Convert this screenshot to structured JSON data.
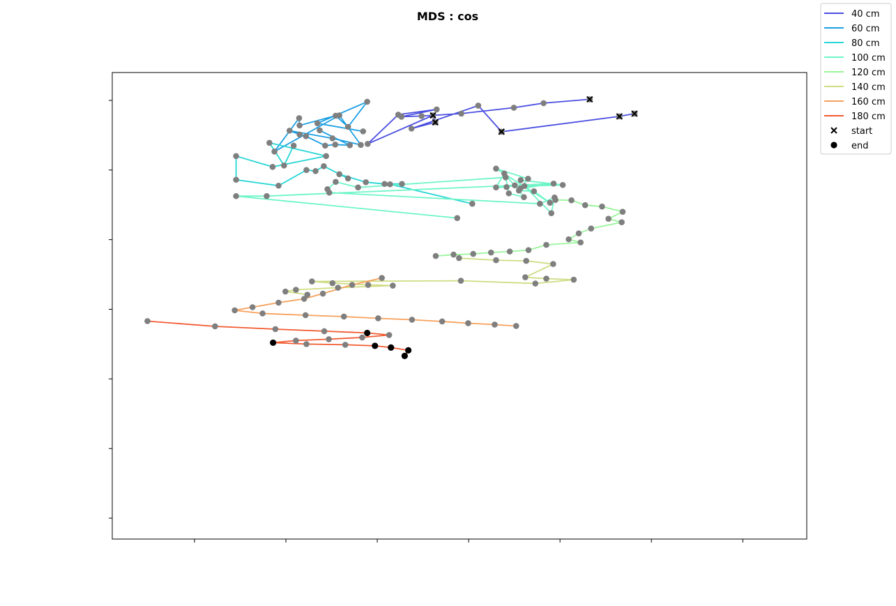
{
  "chart_data": {
    "type": "line",
    "title": "MDS : cos",
    "xlabel": "",
    "ylabel": "",
    "xlim": [
      -0.065,
      0.087
    ],
    "ylim": [
      -0.076,
      0.058
    ],
    "x_tick_values": [
      -0.047,
      -0.027,
      -0.007,
      0.013,
      0.033,
      0.053,
      0.073
    ],
    "y_tick_values": [
      -0.07,
      -0.05,
      -0.03,
      -0.01,
      0.01,
      0.03,
      0.05
    ],
    "tick_labels_visible": false,
    "grid": false,
    "legend_position": "upper-right outside",
    "series": [
      {
        "name": "40 cm",
        "color": "#4a4ee0",
        "points": [
          [
            0.0395,
            0.0503
          ],
          [
            0.0294,
            0.0492
          ],
          [
            0.0229,
            0.0479
          ],
          [
            0.0114,
            0.0462
          ],
          [
            0.0027,
            0.0455
          ],
          [
            -0.0017,
            0.0453
          ],
          [
            0.006,
            0.0474
          ],
          [
            -0.0024,
            0.0459
          ],
          [
            -0.0091,
            0.0375
          ],
          [
            0.0052,
            0.0457
          ],
          [
            0.0057,
            0.0437
          ],
          [
            0.0005,
            0.0419
          ],
          [
            0.0151,
            0.0485
          ],
          [
            0.0202,
            0.041
          ],
          [
            0.046,
            0.0454
          ],
          [
            0.0493,
            0.0462
          ]
        ]
      },
      {
        "name": "60 cm",
        "color": "#1a9fe4",
        "points": [
          [
            -0.0101,
            0.0411
          ],
          [
            -0.0201,
            0.0434
          ],
          [
            -0.0092,
            0.0496
          ],
          [
            -0.0134,
            0.0424
          ],
          [
            -0.0161,
            0.0456
          ],
          [
            -0.024,
            0.0428
          ],
          [
            -0.0241,
            0.0449
          ],
          [
            -0.0295,
            0.0353
          ],
          [
            -0.0153,
            0.0457
          ],
          [
            -0.0106,
            0.0372
          ],
          [
            -0.0168,
            0.0391
          ],
          [
            -0.0262,
            0.0413
          ],
          [
            -0.024,
            0.0402
          ],
          [
            -0.0226,
            0.0397
          ],
          [
            -0.0184,
            0.037
          ],
          [
            -0.0162,
            0.0373
          ],
          [
            -0.013,
            0.0371
          ],
          [
            -0.0196,
            0.0414
          ]
        ]
      },
      {
        "name": "80 cm",
        "color": "#26d6d6",
        "points": [
          [
            -0.0253,
            0.037
          ],
          [
            -0.0274,
            0.0313
          ],
          [
            -0.0306,
            0.0378
          ],
          [
            -0.0182,
            0.034
          ],
          [
            -0.0299,
            0.0309
          ],
          [
            -0.0379,
            0.034
          ],
          [
            -0.0379,
            0.0272
          ],
          [
            -0.0286,
            0.0255
          ],
          [
            -0.0225,
            0.03
          ],
          [
            -0.0205,
            0.0297
          ],
          [
            -0.0187,
            0.0311
          ],
          [
            -0.0134,
            0.0276
          ],
          [
            -0.0153,
            0.0288
          ],
          [
            -0.0095,
            0.0265
          ],
          [
            -0.0054,
            0.026
          ],
          [
            -0.0016,
            0.026
          ],
          [
            -0.0042,
            0.0259
          ],
          [
            0.0138,
            0.0203
          ]
        ]
      },
      {
        "name": "100 cm",
        "color": "#6df5c8",
        "points": [
          [
            0.0244,
            0.0271
          ],
          [
            0.0336,
            0.0257
          ],
          [
            0.0252,
            0.0254
          ],
          [
            0.0311,
            0.0176
          ],
          [
            0.0318,
            0.0221
          ],
          [
            0.0286,
            0.0203
          ],
          [
            -0.0175,
            0.0235
          ],
          [
            -0.0179,
            0.0245
          ],
          [
            -0.0161,
            0.0266
          ],
          [
            -0.0112,
            0.025
          ],
          [
            0.0211,
            0.0279
          ],
          [
            0.0218,
            0.0233
          ],
          [
            0.0251,
            0.0222
          ],
          [
            0.0231,
            0.0256
          ],
          [
            0.0213,
            0.0251
          ],
          [
            0.019,
            0.025
          ],
          [
            0.0208,
            0.029
          ],
          [
            0.024,
            0.0241
          ],
          [
            0.0273,
            0.0239
          ],
          [
            0.0308,
            0.0206
          ],
          [
            0.019,
            0.0304
          ],
          [
            0.026,
            0.0275
          ],
          [
            0.0243,
            0.0247
          ],
          [
            0.0316,
            0.0261
          ],
          [
            -0.0312,
            0.0225
          ],
          [
            -0.0379,
            0.0225
          ],
          [
            0.0105,
            0.0162
          ]
        ]
      },
      {
        "name": "120 cm",
        "color": "#98f59a",
        "points": [
          [
            0.032,
            0.0214
          ],
          [
            0.0355,
            0.0213
          ],
          [
            0.0385,
            0.0199
          ],
          [
            0.0422,
            0.0195
          ],
          [
            0.0467,
            0.018
          ],
          [
            0.0436,
            0.016
          ],
          [
            0.0465,
            0.015
          ],
          [
            0.0398,
            0.0132
          ],
          [
            0.0371,
            0.0118
          ],
          [
            0.0349,
            0.0101
          ],
          [
            0.0375,
            0.0092
          ],
          [
            0.03,
            0.0085
          ],
          [
            0.0261,
            0.007
          ],
          [
            0.022,
            0.0066
          ],
          [
            0.0179,
            0.0063
          ],
          [
            0.014,
            0.0059
          ],
          [
            0.0097,
            0.0057
          ],
          [
            0.0058,
            0.0053
          ]
        ]
      },
      {
        "name": "140 cm",
        "color": "#cfdc82",
        "points": [
          [
            0.0109,
            0.0047
          ],
          [
            0.019,
            0.0041
          ],
          [
            0.0256,
            0.0039
          ],
          [
            0.0315,
            0.003
          ],
          [
            0.0254,
            -0.0008
          ],
          [
            0.03,
            -0.0012
          ],
          [
            0.036,
            -0.0015
          ],
          [
            0.0276,
            -0.0026
          ],
          [
            0.0113,
            -0.0018
          ],
          [
            -0.0213,
            -0.002
          ],
          [
            -0.0168,
            -0.0025
          ],
          [
            -0.009,
            -0.003
          ],
          [
            -0.0036,
            -0.0032
          ],
          [
            -0.0156,
            -0.0038
          ],
          [
            -0.0248,
            -0.0044
          ],
          [
            -0.0271,
            -0.0049
          ],
          [
            -0.0223,
            -0.0058
          ]
        ]
      },
      {
        "name": "160 cm",
        "color": "#f7a05a",
        "points": [
          [
            -0.006,
            -0.001
          ],
          [
            -0.0125,
            -0.003
          ],
          [
            -0.0189,
            -0.0055
          ],
          [
            -0.023,
            -0.007
          ],
          [
            -0.0286,
            -0.0081
          ],
          [
            -0.0343,
            -0.0094
          ],
          [
            -0.0382,
            -0.0103
          ],
          [
            -0.0321,
            -0.0112
          ],
          [
            -0.0227,
            -0.0117
          ],
          [
            -0.0143,
            -0.0121
          ],
          [
            -0.0068,
            -0.0126
          ],
          [
            0.0006,
            -0.013
          ],
          [
            0.0072,
            -0.0135
          ],
          [
            0.0129,
            -0.014
          ],
          [
            0.0187,
            -0.0144
          ],
          [
            0.0234,
            -0.0148
          ]
        ]
      },
      {
        "name": "180 cm",
        "color": "#f25a30",
        "points": [
          [
            -0.0573,
            -0.0134
          ],
          [
            -0.0425,
            -0.0149
          ],
          [
            -0.0293,
            -0.0157
          ],
          [
            -0.0186,
            -0.0163
          ],
          [
            -0.0092,
            -0.0168
          ],
          [
            -0.0044,
            -0.0174
          ],
          [
            -0.0103,
            -0.0181
          ],
          [
            -0.0176,
            -0.0186
          ],
          [
            -0.0248,
            -0.019
          ],
          [
            -0.0298,
            -0.0196
          ],
          [
            -0.0225,
            -0.02
          ],
          [
            -0.014,
            -0.0202
          ],
          [
            -0.0075,
            -0.0205
          ],
          [
            -0.004,
            -0.021
          ],
          [
            -0.0002,
            -0.0218
          ],
          [
            -0.001,
            -0.0234
          ]
        ]
      }
    ],
    "markers": {
      "start_label": "start",
      "end_label": "end"
    }
  },
  "legend": {
    "items": [
      {
        "label": "40 cm",
        "color": "#4a4ee0",
        "kind": "line"
      },
      {
        "label": "60 cm",
        "color": "#1a9fe4",
        "kind": "line"
      },
      {
        "label": "80 cm",
        "color": "#26d6d6",
        "kind": "line"
      },
      {
        "label": "100 cm",
        "color": "#6df5c8",
        "kind": "line"
      },
      {
        "label": "120 cm",
        "color": "#98f59a",
        "kind": "line"
      },
      {
        "label": "140 cm",
        "color": "#cfdc82",
        "kind": "line"
      },
      {
        "label": "160 cm",
        "color": "#f7a05a",
        "kind": "line"
      },
      {
        "label": "180 cm",
        "color": "#f25a30",
        "kind": "line"
      },
      {
        "label": "start",
        "color": "#000000",
        "kind": "x"
      },
      {
        "label": "end",
        "color": "#000000",
        "kind": "dot"
      }
    ]
  },
  "colors": {
    "point_fill": "#7f7f7f",
    "axis": "#000000"
  }
}
